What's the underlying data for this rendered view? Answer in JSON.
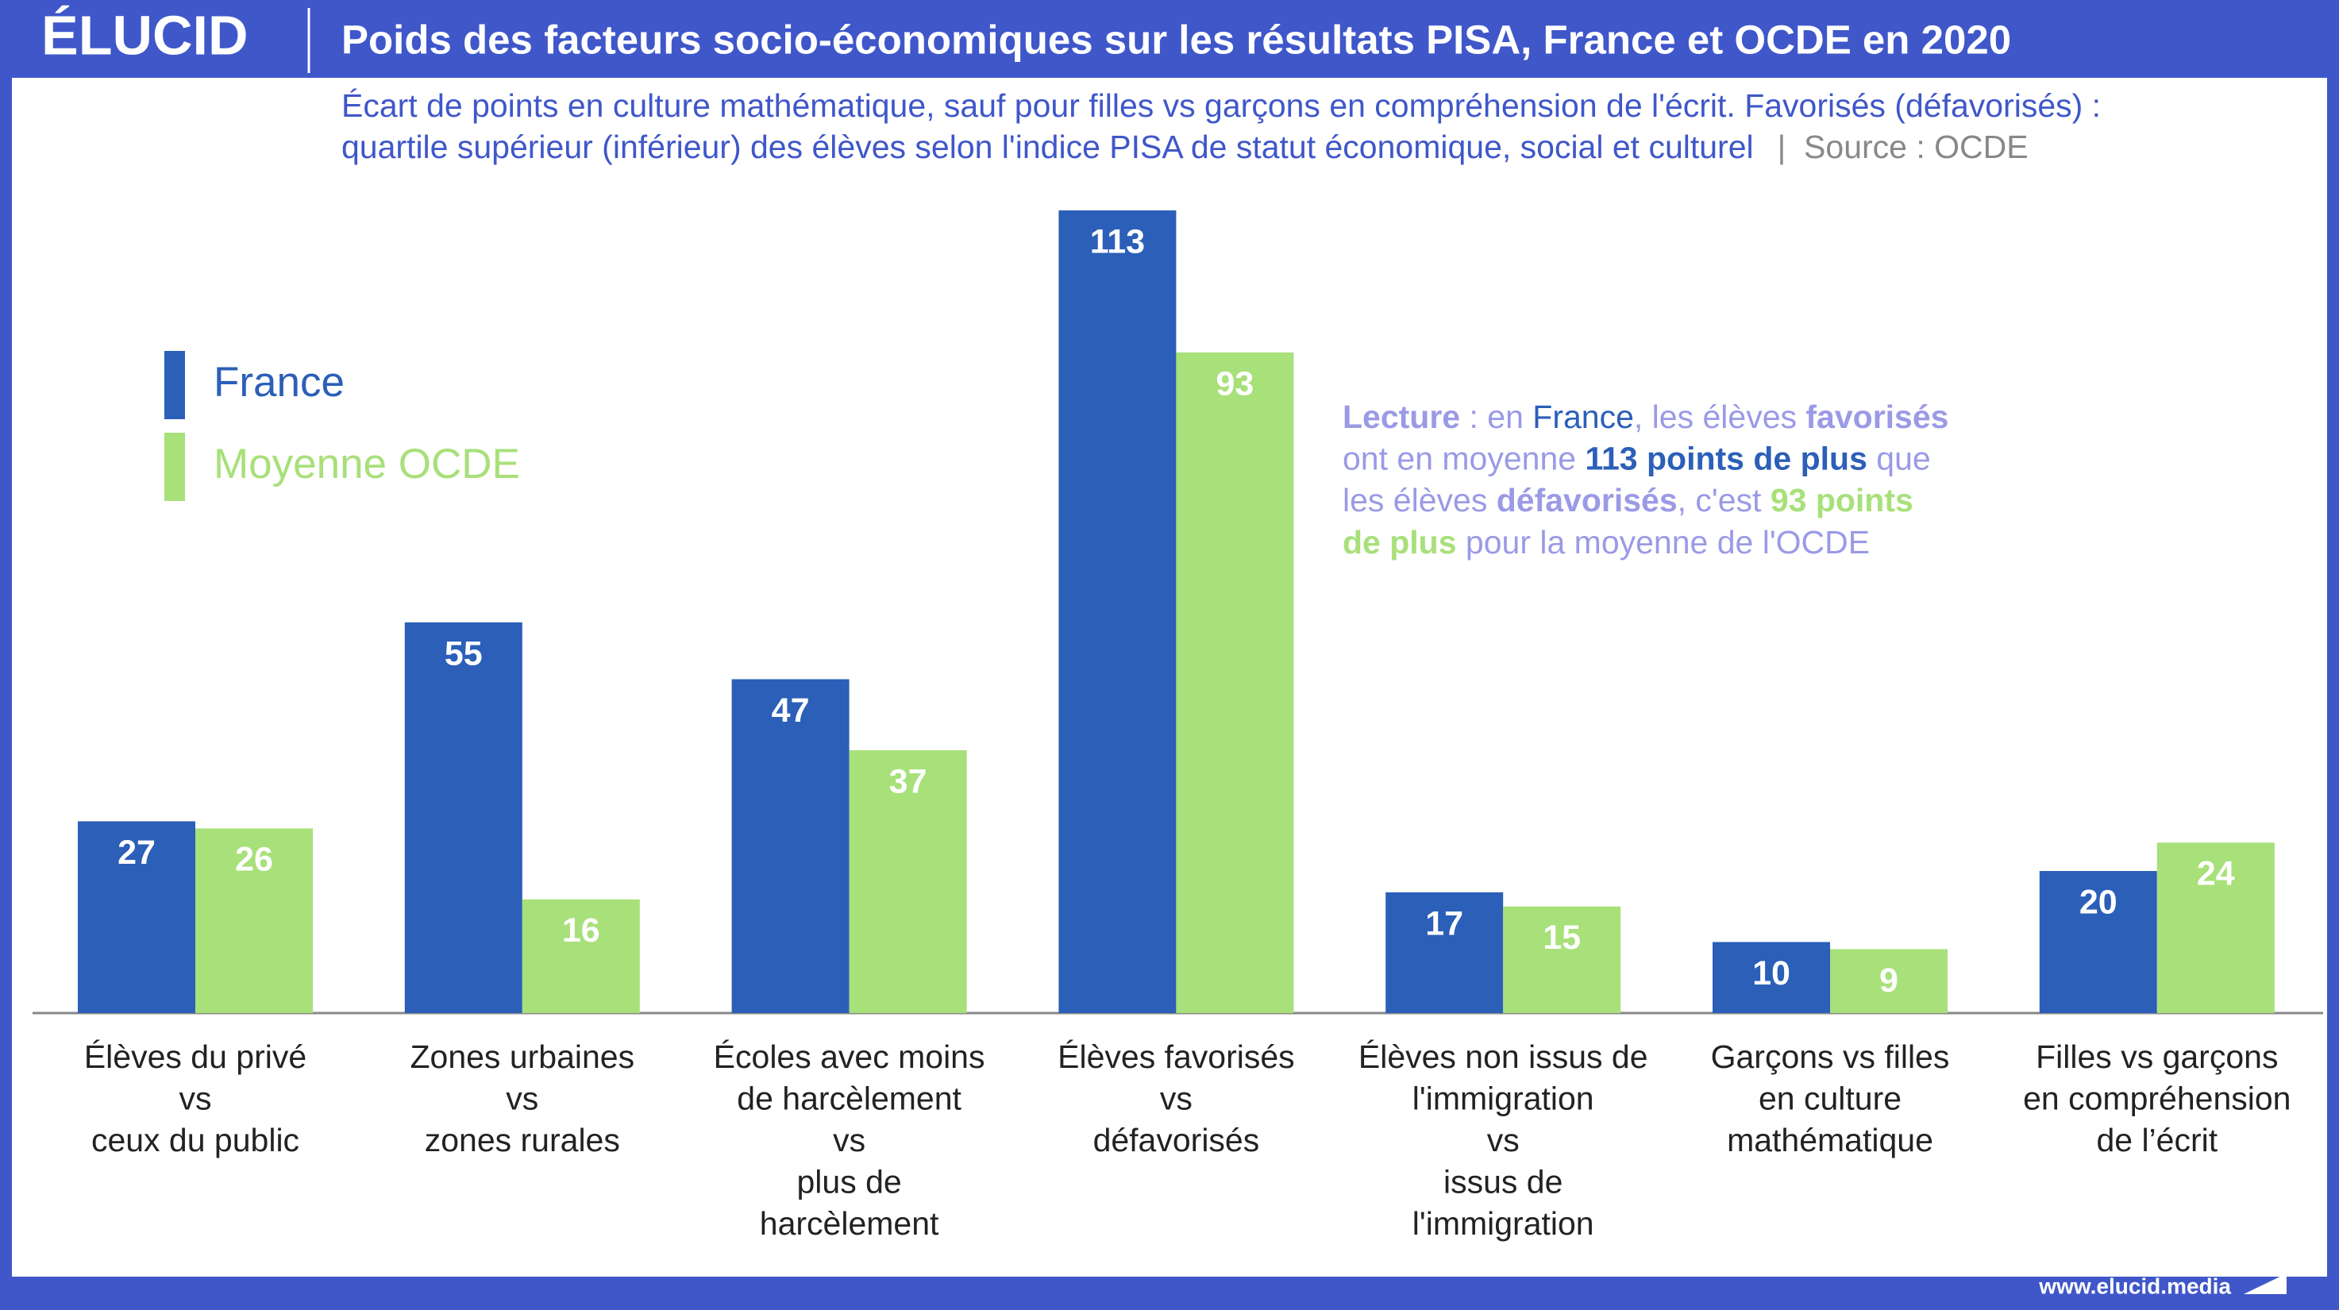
{
  "brand": "ÉLUCID",
  "footer": "www.elucid.media",
  "chart_data": {
    "type": "bar",
    "title": "Poids des facteurs socio-économiques sur les résultats PISA, France et OCDE en 2020",
    "subtitle": [
      "Écart de points en culture mathématique, sauf pour filles vs garçons en compréhension de l'écrit. Favorisés (défavorisés) :",
      "quartile supérieur (inférieur) des élèves selon l'indice PISA de statut économique, social et culturel"
    ],
    "source": "|  Source : OCDE",
    "categories": [
      [
        "Élèves du privé",
        "vs",
        "ceux du public"
      ],
      [
        "Zones urbaines",
        "vs",
        "zones rurales"
      ],
      [
        "Écoles avec moins",
        "de harcèlement",
        "vs",
        "plus de",
        "harcèlement"
      ],
      [
        "Élèves favorisés",
        "vs",
        "défavorisés"
      ],
      [
        "Élèves non issus de",
        "l'immigration",
        "vs",
        "issus de",
        "l'immigration"
      ],
      [
        "Garçons vs filles",
        "en culture",
        "mathématique"
      ],
      [
        "Filles vs garçons",
        "en compréhension",
        "de l’écrit"
      ]
    ],
    "series": [
      {
        "name": "France",
        "color": "#2b5fb8",
        "values": [
          27,
          55,
          47,
          113,
          17,
          10,
          20
        ]
      },
      {
        "name": "Moyenne OCDE",
        "color": "#a8e07a",
        "values": [
          26,
          16,
          37,
          93,
          15,
          9,
          24
        ]
      }
    ],
    "legend": "upper left",
    "annotation": [
      [
        {
          "text": "Lecture",
          "color": "#9a9ae6",
          "bold": true
        },
        {
          "text": " : en ",
          "color": "#9a9ae6",
          "bold": false
        },
        {
          "text": "France",
          "color": "#2b5fb8",
          "bold": false
        },
        {
          "text": ", les élèves ",
          "color": "#9a9ae6",
          "bold": false
        },
        {
          "text": "favorisés",
          "color": "#9a9ae6",
          "bold": true
        }
      ],
      [
        {
          "text": "ont en moyenne ",
          "color": "#9a9ae6",
          "bold": false
        },
        {
          "text": "113 points de plus",
          "color": "#2b5fb8",
          "bold": true
        },
        {
          "text": " que",
          "color": "#9a9ae6",
          "bold": false
        }
      ],
      [
        {
          "text": "les élèves ",
          "color": "#9a9ae6",
          "bold": false
        },
        {
          "text": "défavorisés",
          "color": "#9a9ae6",
          "bold": true
        },
        {
          "text": ", c'est ",
          "color": "#9a9ae6",
          "bold": false
        },
        {
          "text": "93 points",
          "color": "#a8e07a",
          "bold": true
        }
      ],
      [
        {
          "text": "de plus",
          "color": "#a8e07a",
          "bold": true
        },
        {
          "text": " pour la moyenne de l'OCDE",
          "color": "#9a9ae6",
          "bold": false
        }
      ]
    ]
  }
}
